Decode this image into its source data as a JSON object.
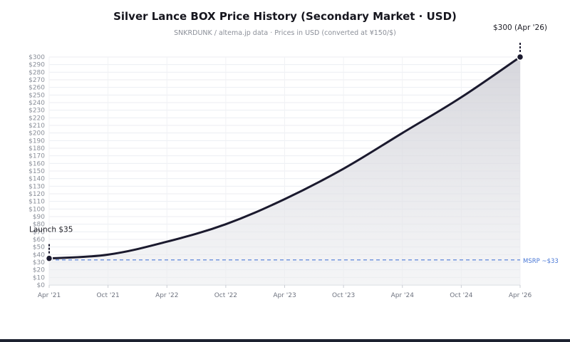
{
  "chart_data": {
    "type": "area",
    "title": "Silver Lance BOX Price History (Secondary Market · USD)",
    "subtitle": "SNKRDUNK / altema.jp data · Prices in USD (converted at ¥150/$)",
    "x": [
      "Apr '21",
      "Oct '21",
      "Apr '22",
      "Oct '22",
      "Apr '23",
      "Oct '23",
      "Apr '24",
      "Oct '24",
      "Apr '26"
    ],
    "series": [
      {
        "values": [
          35,
          40,
          57,
          80,
          113,
          153,
          200,
          247,
          300
        ]
      }
    ],
    "ylim": [
      0,
      300
    ],
    "ytick_step": 10,
    "ytick_prefix": "$",
    "grid": true,
    "colors": {
      "line": "#1b1a2e",
      "fill": "#d8d8de",
      "msrp": "#4a78d6"
    },
    "annotations": {
      "start": "Launch $35",
      "end": "$300 (Apr '26)",
      "reference": {
        "label": "MSRP ~$33",
        "value": 33
      }
    }
  }
}
